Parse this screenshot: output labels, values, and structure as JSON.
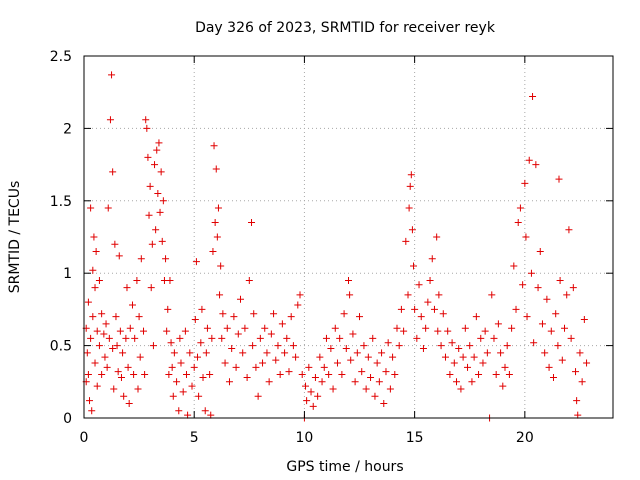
{
  "chart_data": {
    "type": "scatter",
    "title": "Day 326 of 2023, SRMTID for receiver reyk",
    "xlabel": "GPS time / hours",
    "ylabel": "SRMTID / TECUs",
    "xlim": [
      0,
      24
    ],
    "ylim": [
      0,
      2.5
    ],
    "x_ticks": [
      0,
      5,
      10,
      15,
      20
    ],
    "x_tick_labels": [
      "0",
      "5",
      "10",
      "15",
      "20"
    ],
    "y_ticks": [
      0,
      0.5,
      1,
      1.5,
      2,
      2.5
    ],
    "y_tick_labels": [
      "0",
      "0.5",
      "1",
      "1.5",
      "2",
      "2.5"
    ],
    "grid": true,
    "marker": "plus",
    "series_color": "#e00000",
    "series": [
      {
        "name": "SRMTID",
        "points": [
          [
            0.1,
            0.62
          ],
          [
            0.1,
            0.25
          ],
          [
            0.15,
            0.45
          ],
          [
            0.2,
            0.8
          ],
          [
            0.2,
            0.3
          ],
          [
            0.25,
            0.12
          ],
          [
            0.3,
            1.45
          ],
          [
            0.3,
            0.55
          ],
          [
            0.35,
            0.05
          ],
          [
            0.4,
            1.02
          ],
          [
            0.4,
            0.7
          ],
          [
            0.45,
            1.25
          ],
          [
            0.5,
            0.9
          ],
          [
            0.5,
            0.38
          ],
          [
            0.55,
            1.15
          ],
          [
            0.6,
            0.6
          ],
          [
            0.6,
            0.22
          ],
          [
            0.7,
            0.95
          ],
          [
            0.7,
            0.5
          ],
          [
            0.8,
            0.72
          ],
          [
            0.8,
            0.3
          ],
          [
            0.9,
            0.58
          ],
          [
            0.95,
            0.42
          ],
          [
            1.0,
            0.65
          ],
          [
            1.05,
            0.35
          ],
          [
            1.1,
            1.45
          ],
          [
            1.15,
            0.55
          ],
          [
            1.2,
            2.06
          ],
          [
            1.25,
            2.37
          ],
          [
            1.3,
            1.7
          ],
          [
            1.3,
            0.48
          ],
          [
            1.35,
            0.2
          ],
          [
            1.4,
            1.2
          ],
          [
            1.45,
            0.7
          ],
          [
            1.5,
            0.5
          ],
          [
            1.55,
            0.32
          ],
          [
            1.6,
            1.12
          ],
          [
            1.65,
            0.6
          ],
          [
            1.7,
            0.28
          ],
          [
            1.75,
            0.45
          ],
          [
            1.8,
            0.15
          ],
          [
            1.9,
            0.55
          ],
          [
            1.95,
            0.9
          ],
          [
            2.0,
            0.35
          ],
          [
            2.05,
            0.1
          ],
          [
            2.1,
            0.62
          ],
          [
            2.2,
            0.78
          ],
          [
            2.25,
            0.3
          ],
          [
            2.3,
            0.55
          ],
          [
            2.4,
            0.95
          ],
          [
            2.45,
            0.2
          ],
          [
            2.5,
            0.7
          ],
          [
            2.55,
            0.42
          ],
          [
            2.6,
            1.1
          ],
          [
            2.7,
            0.6
          ],
          [
            2.75,
            0.3
          ],
          [
            2.8,
            2.06
          ],
          [
            2.85,
            2.0
          ],
          [
            2.9,
            1.8
          ],
          [
            2.95,
            1.4
          ],
          [
            3.0,
            1.6
          ],
          [
            3.05,
            0.9
          ],
          [
            3.1,
            1.2
          ],
          [
            3.15,
            0.5
          ],
          [
            3.2,
            1.75
          ],
          [
            3.25,
            1.3
          ],
          [
            3.3,
            1.85
          ],
          [
            3.35,
            1.55
          ],
          [
            3.4,
            1.9
          ],
          [
            3.45,
            1.42
          ],
          [
            3.5,
            1.7
          ],
          [
            3.55,
            1.22
          ],
          [
            3.6,
            1.5
          ],
          [
            3.65,
            0.95
          ],
          [
            3.7,
            1.1
          ],
          [
            3.75,
            0.6
          ],
          [
            3.8,
            0.75
          ],
          [
            3.85,
            0.3
          ],
          [
            3.9,
            0.95
          ],
          [
            3.95,
            0.52
          ],
          [
            4.0,
            0.35
          ],
          [
            4.05,
            0.15
          ],
          [
            4.1,
            0.45
          ],
          [
            4.2,
            0.25
          ],
          [
            4.3,
            0.05
          ],
          [
            4.35,
            0.55
          ],
          [
            4.4,
            0.38
          ],
          [
            4.5,
            0.18
          ],
          [
            4.6,
            0.6
          ],
          [
            4.65,
            0.3
          ],
          [
            4.7,
            0.02
          ],
          [
            4.8,
            0.45
          ],
          [
            4.9,
            0.22
          ],
          [
            5.0,
            0.35
          ],
          [
            5.05,
            0.68
          ],
          [
            5.1,
            1.08
          ],
          [
            5.15,
            0.42
          ],
          [
            5.2,
            0.15
          ],
          [
            5.3,
            0.52
          ],
          [
            5.35,
            0.75
          ],
          [
            5.4,
            0.28
          ],
          [
            5.5,
            0.05
          ],
          [
            5.55,
            0.45
          ],
          [
            5.6,
            0.62
          ],
          [
            5.7,
            0.3
          ],
          [
            5.75,
            0.02
          ],
          [
            5.8,
            0.55
          ],
          [
            5.85,
            1.15
          ],
          [
            5.9,
            1.88
          ],
          [
            5.95,
            1.35
          ],
          [
            6.0,
            1.72
          ],
          [
            6.05,
            1.25
          ],
          [
            6.1,
            1.45
          ],
          [
            6.15,
            0.85
          ],
          [
            6.2,
            1.05
          ],
          [
            6.25,
            0.55
          ],
          [
            6.3,
            0.72
          ],
          [
            6.4,
            0.38
          ],
          [
            6.5,
            0.62
          ],
          [
            6.6,
            0.25
          ],
          [
            6.7,
            0.48
          ],
          [
            6.8,
            0.7
          ],
          [
            6.9,
            0.35
          ],
          [
            7.0,
            0.58
          ],
          [
            7.1,
            0.82
          ],
          [
            7.2,
            0.45
          ],
          [
            7.3,
            0.62
          ],
          [
            7.4,
            0.28
          ],
          [
            7.5,
            0.95
          ],
          [
            7.6,
            1.35
          ],
          [
            7.65,
            0.5
          ],
          [
            7.7,
            0.72
          ],
          [
            7.8,
            0.35
          ],
          [
            7.9,
            0.15
          ],
          [
            8.0,
            0.55
          ],
          [
            8.1,
            0.38
          ],
          [
            8.2,
            0.62
          ],
          [
            8.3,
            0.45
          ],
          [
            8.4,
            0.25
          ],
          [
            8.5,
            0.58
          ],
          [
            8.6,
            0.72
          ],
          [
            8.7,
            0.4
          ],
          [
            8.8,
            0.5
          ],
          [
            8.9,
            0.3
          ],
          [
            9.0,
            0.65
          ],
          [
            9.1,
            0.45
          ],
          [
            9.2,
            0.55
          ],
          [
            9.3,
            0.32
          ],
          [
            9.4,
            0.7
          ],
          [
            9.5,
            0.5
          ],
          [
            9.6,
            0.42
          ],
          [
            9.7,
            0.78
          ],
          [
            9.8,
            0.85
          ],
          [
            9.9,
            0.3
          ],
          [
            10.0,
            0.0
          ],
          [
            10.05,
            0.22
          ],
          [
            10.1,
            0.12
          ],
          [
            10.2,
            0.35
          ],
          [
            10.3,
            0.18
          ],
          [
            10.4,
            0.08
          ],
          [
            10.5,
            0.28
          ],
          [
            10.6,
            0.15
          ],
          [
            10.7,
            0.42
          ],
          [
            10.8,
            0.25
          ],
          [
            10.9,
            0.35
          ],
          [
            11.0,
            0.55
          ],
          [
            11.1,
            0.3
          ],
          [
            11.2,
            0.48
          ],
          [
            11.3,
            0.2
          ],
          [
            11.4,
            0.62
          ],
          [
            11.5,
            0.38
          ],
          [
            11.6,
            0.55
          ],
          [
            11.7,
            0.3
          ],
          [
            11.8,
            0.72
          ],
          [
            11.9,
            0.48
          ],
          [
            12.0,
            0.95
          ],
          [
            12.05,
            0.85
          ],
          [
            12.1,
            0.4
          ],
          [
            12.2,
            0.58
          ],
          [
            12.3,
            0.25
          ],
          [
            12.4,
            0.45
          ],
          [
            12.5,
            0.7
          ],
          [
            12.6,
            0.32
          ],
          [
            12.7,
            0.5
          ],
          [
            12.8,
            0.2
          ],
          [
            12.9,
            0.42
          ],
          [
            13.0,
            0.28
          ],
          [
            13.1,
            0.55
          ],
          [
            13.2,
            0.15
          ],
          [
            13.3,
            0.38
          ],
          [
            13.4,
            0.25
          ],
          [
            13.5,
            0.45
          ],
          [
            13.6,
            0.1
          ],
          [
            13.7,
            0.32
          ],
          [
            13.8,
            0.52
          ],
          [
            13.9,
            0.2
          ],
          [
            14.0,
            0.42
          ],
          [
            14.1,
            0.3
          ],
          [
            14.2,
            0.62
          ],
          [
            14.3,
            0.5
          ],
          [
            14.4,
            0.75
          ],
          [
            14.5,
            0.6
          ],
          [
            14.6,
            1.22
          ],
          [
            14.7,
            0.85
          ],
          [
            14.75,
            1.45
          ],
          [
            14.8,
            1.6
          ],
          [
            14.85,
            1.68
          ],
          [
            14.9,
            1.3
          ],
          [
            14.95,
            1.05
          ],
          [
            15.0,
            0.75
          ],
          [
            15.1,
            0.55
          ],
          [
            15.2,
            0.92
          ],
          [
            15.3,
            0.7
          ],
          [
            15.4,
            0.48
          ],
          [
            15.5,
            0.62
          ],
          [
            15.6,
            0.8
          ],
          [
            15.7,
            0.95
          ],
          [
            15.8,
            1.1
          ],
          [
            15.9,
            0.75
          ],
          [
            16.0,
            1.25
          ],
          [
            16.05,
            0.6
          ],
          [
            16.1,
            0.85
          ],
          [
            16.2,
            0.5
          ],
          [
            16.3,
            0.72
          ],
          [
            16.4,
            0.42
          ],
          [
            16.5,
            0.6
          ],
          [
            16.6,
            0.3
          ],
          [
            16.7,
            0.52
          ],
          [
            16.8,
            0.38
          ],
          [
            16.9,
            0.25
          ],
          [
            17.0,
            0.48
          ],
          [
            17.1,
            0.2
          ],
          [
            17.2,
            0.42
          ],
          [
            17.3,
            0.62
          ],
          [
            17.4,
            0.35
          ],
          [
            17.5,
            0.5
          ],
          [
            17.6,
            0.25
          ],
          [
            17.7,
            0.42
          ],
          [
            17.8,
            0.7
          ],
          [
            17.9,
            0.3
          ],
          [
            18.0,
            0.55
          ],
          [
            18.1,
            0.38
          ],
          [
            18.2,
            0.6
          ],
          [
            18.3,
            0.45
          ],
          [
            18.4,
            0.0
          ],
          [
            18.5,
            0.85
          ],
          [
            18.6,
            0.55
          ],
          [
            18.7,
            0.3
          ],
          [
            18.8,
            0.65
          ],
          [
            18.9,
            0.45
          ],
          [
            19.0,
            0.22
          ],
          [
            19.1,
            0.35
          ],
          [
            19.2,
            0.5
          ],
          [
            19.3,
            0.3
          ],
          [
            19.4,
            0.62
          ],
          [
            19.5,
            1.05
          ],
          [
            19.6,
            0.75
          ],
          [
            19.7,
            1.35
          ],
          [
            19.8,
            1.45
          ],
          [
            19.9,
            0.92
          ],
          [
            20.0,
            1.62
          ],
          [
            20.05,
            1.25
          ],
          [
            20.1,
            0.7
          ],
          [
            20.2,
            1.78
          ],
          [
            20.3,
            1.0
          ],
          [
            20.35,
            2.22
          ],
          [
            20.4,
            0.52
          ],
          [
            20.5,
            1.75
          ],
          [
            20.6,
            0.9
          ],
          [
            20.7,
            1.15
          ],
          [
            20.8,
            0.65
          ],
          [
            20.9,
            0.45
          ],
          [
            21.0,
            0.82
          ],
          [
            21.1,
            0.35
          ],
          [
            21.2,
            0.6
          ],
          [
            21.3,
            0.28
          ],
          [
            21.4,
            0.72
          ],
          [
            21.5,
            0.5
          ],
          [
            21.55,
            1.65
          ],
          [
            21.6,
            0.95
          ],
          [
            21.7,
            0.4
          ],
          [
            21.8,
            0.62
          ],
          [
            21.9,
            0.85
          ],
          [
            22.0,
            1.3
          ],
          [
            22.1,
            0.55
          ],
          [
            22.2,
            0.9
          ],
          [
            22.3,
            0.32
          ],
          [
            22.35,
            0.12
          ],
          [
            22.4,
            0.02
          ],
          [
            22.5,
            0.45
          ],
          [
            22.6,
            0.25
          ],
          [
            22.7,
            0.68
          ],
          [
            22.8,
            0.38
          ]
        ]
      }
    ]
  }
}
